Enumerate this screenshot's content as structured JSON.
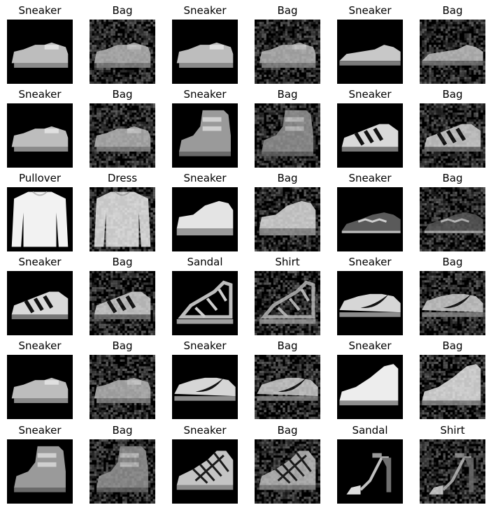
{
  "grid": {
    "rows": [
      [
        {
          "label": "Sneaker",
          "subject": "sneaker-low",
          "noise": false
        },
        {
          "label": "Bag",
          "subject": "sneaker-low",
          "noise": true
        },
        {
          "label": "Sneaker",
          "subject": "sneaker-low",
          "noise": false
        },
        {
          "label": "Bag",
          "subject": "sneaker-low",
          "noise": true
        },
        {
          "label": "Sneaker",
          "subject": "sneaker-flat",
          "noise": false
        },
        {
          "label": "Bag",
          "subject": "sneaker-flat",
          "noise": true
        }
      ],
      [
        {
          "label": "Sneaker",
          "subject": "sneaker-low",
          "noise": false
        },
        {
          "label": "Bag",
          "subject": "sneaker-low",
          "noise": true
        },
        {
          "label": "Sneaker",
          "subject": "boot-high",
          "noise": false
        },
        {
          "label": "Bag",
          "subject": "boot-high",
          "noise": true
        },
        {
          "label": "Sneaker",
          "subject": "sneaker-stripes",
          "noise": false
        },
        {
          "label": "Bag",
          "subject": "sneaker-stripes",
          "noise": true
        }
      ],
      [
        {
          "label": "Pullover",
          "subject": "pullover",
          "noise": false
        },
        {
          "label": "Dress",
          "subject": "pullover",
          "noise": true
        },
        {
          "label": "Sneaker",
          "subject": "sneaker-chunky",
          "noise": false
        },
        {
          "label": "Bag",
          "subject": "sneaker-chunky",
          "noise": true
        },
        {
          "label": "Sneaker",
          "subject": "sneaker-dark",
          "noise": false
        },
        {
          "label": "Bag",
          "subject": "sneaker-dark",
          "noise": true
        }
      ],
      [
        {
          "label": "Sneaker",
          "subject": "sneaker-stripes",
          "noise": false
        },
        {
          "label": "Bag",
          "subject": "sneaker-stripes",
          "noise": true
        },
        {
          "label": "Sandal",
          "subject": "sandal-strappy",
          "noise": false
        },
        {
          "label": "Shirt",
          "subject": "sandal-strappy",
          "noise": true
        },
        {
          "label": "Sneaker",
          "subject": "sneaker-swoosh",
          "noise": false
        },
        {
          "label": "Bag",
          "subject": "sneaker-swoosh",
          "noise": true
        }
      ],
      [
        {
          "label": "Sneaker",
          "subject": "sneaker-low",
          "noise": false
        },
        {
          "label": "Bag",
          "subject": "sneaker-low",
          "noise": true
        },
        {
          "label": "Sneaker",
          "subject": "sneaker-swoosh",
          "noise": false
        },
        {
          "label": "Bag",
          "subject": "sneaker-swoosh",
          "noise": true
        },
        {
          "label": "Sneaker",
          "subject": "sneaker-high",
          "noise": false
        },
        {
          "label": "Bag",
          "subject": "sneaker-high",
          "noise": true
        }
      ],
      [
        {
          "label": "Sneaker",
          "subject": "boot-high",
          "noise": false
        },
        {
          "label": "Bag",
          "subject": "boot-high",
          "noise": true
        },
        {
          "label": "Sneaker",
          "subject": "sneaker-lattice",
          "noise": false
        },
        {
          "label": "Bag",
          "subject": "sneaker-lattice",
          "noise": true
        },
        {
          "label": "Sandal",
          "subject": "sandal-heel",
          "noise": false
        },
        {
          "label": "Shirt",
          "subject": "sandal-heel",
          "noise": true
        }
      ]
    ]
  }
}
